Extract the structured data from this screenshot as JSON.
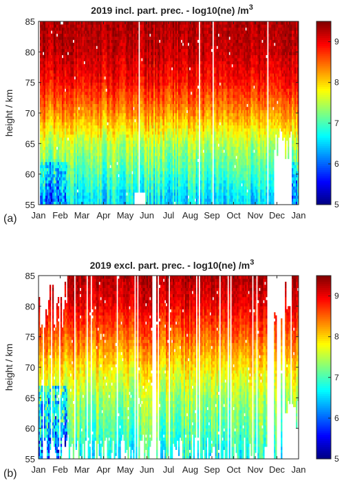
{
  "chart_data": [
    {
      "type": "heatmap",
      "panel_label": "(a)",
      "title": "2019 incl. part. prec. - log10(ne) /m",
      "title_sup": "3",
      "ylabel": "height / km",
      "xlabel": "",
      "x_ticks": [
        "Jan",
        "Feb",
        "Mar",
        "Apr",
        "May",
        "Jun",
        "Jul",
        "Aug",
        "Sep",
        "Oct",
        "Nov",
        "Dec",
        "Jan"
      ],
      "y_ticks": [
        55,
        60,
        65,
        70,
        75,
        80,
        85
      ],
      "ylim": [
        55,
        85
      ],
      "xlim_days": [
        0,
        365
      ],
      "colorbar": {
        "range": [
          5,
          9.5
        ],
        "ticks": [
          5,
          6,
          7,
          8,
          9
        ],
        "colormap": "jet"
      },
      "profile_model": {
        "description_values": "log10(ne) rises with height from ~7 at 60 km to ~9.3 at 85 km",
        "heights_km": [
          56,
          60,
          65,
          70,
          75,
          80,
          85
        ],
        "log10_ne": [
          6.6,
          7.0,
          7.5,
          8.3,
          8.9,
          9.2,
          9.3
        ]
      },
      "grid": false,
      "legend": "none"
    },
    {
      "type": "heatmap",
      "panel_label": "(b)",
      "title": "2019 excl. part. prec. - log10(ne) /m",
      "title_sup": "3",
      "ylabel": "height / km",
      "xlabel": "",
      "x_ticks": [
        "Jan",
        "Feb",
        "Mar",
        "Apr",
        "May",
        "Jun",
        "Jul",
        "Aug",
        "Sep",
        "Oct",
        "Nov",
        "Dec",
        "Jan"
      ],
      "y_ticks": [
        55,
        60,
        65,
        70,
        75,
        80,
        85
      ],
      "ylim": [
        55,
        85
      ],
      "xlim_days": [
        0,
        365
      ],
      "colorbar": {
        "range": [
          5,
          9.5
        ],
        "ticks": [
          5,
          6,
          7,
          8,
          9
        ],
        "colormap": "jet"
      },
      "profile_model": {
        "heights_km": [
          56,
          60,
          65,
          70,
          75,
          80,
          85
        ],
        "log10_ne": [
          6.8,
          7.1,
          7.4,
          7.9,
          8.5,
          9.0,
          9.3
        ]
      },
      "grid": false,
      "legend": "none"
    }
  ],
  "colors": {
    "axis": "#222222",
    "background": "#ffffff"
  }
}
